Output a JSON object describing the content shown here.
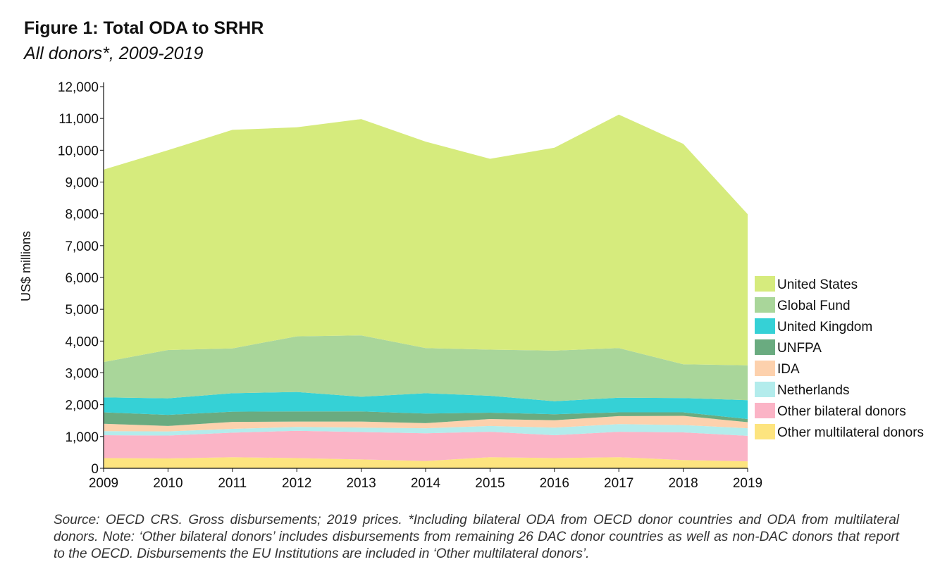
{
  "title": "Figure 1: Total ODA to SRHR",
  "subtitle": "All donors*, 2009-2019",
  "source": "Source: OECD CRS. Gross disbursements; 2019 prices. *Including bilateral ODA from OECD donor countries and ODA from multilateral donors. Note: ‘Other bilateral donors’ includes disbursements from remaining 26 DAC donor countries as well as non-DAC donors that report to the OECD. Disbursements the EU Institutions are included in ‘Other multilateral donors’.",
  "chart_data": {
    "type": "area",
    "stacked": true,
    "ylabel": "US$ millions",
    "xlabel": "",
    "ylim": [
      0,
      12000
    ],
    "yticks": [
      "0",
      "1,000",
      "2,000",
      "3,000",
      "4,000",
      "5,000",
      "6,000",
      "7,000",
      "8,000",
      "9,000",
      "10,000",
      "11,000",
      "12,000"
    ],
    "ytick_values": [
      0,
      1000,
      2000,
      3000,
      4000,
      5000,
      6000,
      7000,
      8000,
      9000,
      10000,
      11000,
      12000
    ],
    "categories": [
      "2009",
      "2010",
      "2011",
      "2012",
      "2013",
      "2014",
      "2015",
      "2016",
      "2017",
      "2018",
      "2019"
    ],
    "legend_position": "right",
    "series": [
      {
        "name": "Other multilateral donors",
        "color": "#fde47f",
        "values": [
          320,
          310,
          350,
          320,
          280,
          230,
          350,
          320,
          350,
          260,
          220
        ]
      },
      {
        "name": "Other bilateral donors",
        "color": "#fbb4c6",
        "values": [
          720,
          720,
          770,
          860,
          860,
          870,
          800,
          720,
          800,
          870,
          800
        ]
      },
      {
        "name": "Netherlands",
        "color": "#b3ecec",
        "values": [
          130,
          130,
          120,
          120,
          140,
          160,
          180,
          240,
          240,
          230,
          240
        ]
      },
      {
        "name": "IDA",
        "color": "#fdd1ad",
        "values": [
          230,
          170,
          220,
          170,
          190,
          160,
          220,
          230,
          250,
          290,
          190
        ]
      },
      {
        "name": "UNFPA",
        "color": "#6aab80",
        "values": [
          360,
          350,
          320,
          320,
          320,
          300,
          200,
          190,
          120,
          110,
          100
        ]
      },
      {
        "name": "United Kingdom",
        "color": "#35d1d6",
        "values": [
          470,
          520,
          580,
          610,
          460,
          640,
          530,
          410,
          460,
          450,
          590
        ]
      },
      {
        "name": "Global Fund",
        "color": "#a9d69a",
        "values": [
          1110,
          1520,
          1410,
          1750,
          1930,
          1420,
          1450,
          1590,
          1560,
          1060,
          1100
        ]
      },
      {
        "name": "United States",
        "color": "#d6eb7d",
        "values": [
          6050,
          6280,
          6870,
          6570,
          6800,
          6490,
          6000,
          6380,
          7340,
          6930,
          4750
        ]
      }
    ]
  }
}
